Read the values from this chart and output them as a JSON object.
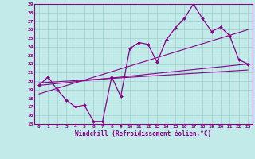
{
  "xlabel": "Windchill (Refroidissement éolien,°C)",
  "xlim": [
    -0.5,
    23.5
  ],
  "ylim": [
    15,
    29
  ],
  "xticks": [
    0,
    1,
    2,
    3,
    4,
    5,
    6,
    7,
    8,
    9,
    10,
    11,
    12,
    13,
    14,
    15,
    16,
    17,
    18,
    19,
    20,
    21,
    22,
    23
  ],
  "yticks": [
    15,
    16,
    17,
    18,
    19,
    20,
    21,
    22,
    23,
    24,
    25,
    26,
    27,
    28,
    29
  ],
  "bg_color": "#c2eae8",
  "line_color": "#8b008b",
  "grid_color": "#9ecece",
  "line1_x": [
    0,
    1,
    2,
    3,
    4,
    5,
    6,
    7,
    8,
    9,
    10,
    11,
    12,
    13,
    14,
    15,
    16,
    17,
    18,
    19,
    20,
    21,
    22,
    23
  ],
  "line1_y": [
    19.5,
    20.5,
    19.0,
    17.8,
    17.0,
    17.2,
    15.3,
    15.3,
    20.5,
    18.2,
    23.8,
    24.5,
    24.3,
    22.2,
    24.8,
    26.2,
    27.3,
    29.0,
    27.3,
    25.8,
    26.3,
    25.3,
    22.5,
    22.0
  ],
  "line2_x": [
    0,
    23
  ],
  "line2_y": [
    19.5,
    22.0
  ],
  "line3_x": [
    0,
    23
  ],
  "line3_y": [
    18.5,
    26.0
  ],
  "line4_x": [
    0,
    23
  ],
  "line4_y": [
    19.8,
    21.3
  ]
}
